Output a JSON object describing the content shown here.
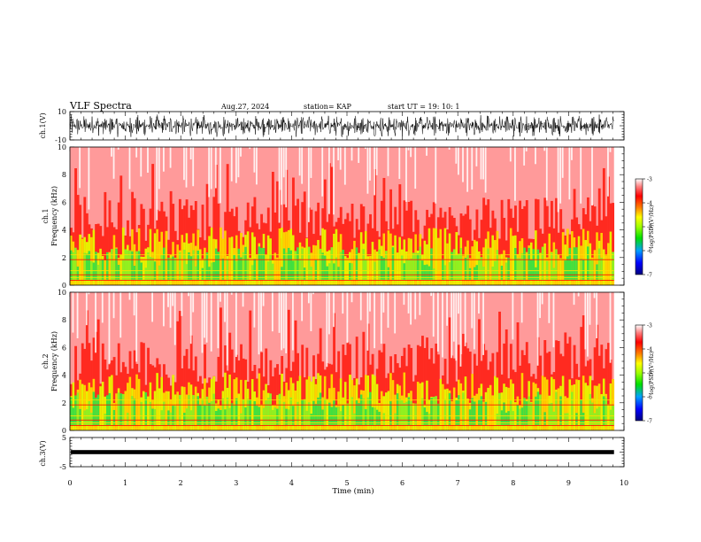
{
  "header": {
    "title": "VLF Spectra",
    "date": "Aug.27, 2024",
    "station": "station= KAP",
    "start": "start  UT =    19: 10: 1"
  },
  "chart_data": [
    {
      "type": "line",
      "name_label": "ch.1(V)",
      "ylabel": "ch.1(V)",
      "ylim": [
        -10,
        10
      ],
      "yticks": [
        "10",
        "-10"
      ],
      "xlim": [
        0,
        10
      ],
      "description_values": {
        "typical_min": -8,
        "typical_max": 8
      }
    },
    {
      "type": "heatmap",
      "ylabel_line1": "ch.1",
      "ylabel_line2": "Frequency  (kHz)",
      "ylim": [
        0,
        10
      ],
      "yticks": [
        "0",
        "2",
        "4",
        "6",
        "8",
        "10"
      ],
      "xlim": [
        0,
        10
      ],
      "colorbar": {
        "label": "log(PSD)(V²/Hz)",
        "range": [
          -7,
          -3
        ],
        "ticks": [
          "-3",
          "-4",
          "-5",
          "-6",
          "-7"
        ],
        "colors": [
          "#000080",
          "#0000ff",
          "#00a0ff",
          "#00e000",
          "#a0ff00",
          "#ffff00",
          "#ff8000",
          "#ff0000",
          "#ff8080",
          "#ffffff"
        ]
      }
    },
    {
      "type": "heatmap",
      "ylabel_line1": "ch.2",
      "ylabel_line2": "Frequency  (kHz)",
      "ylim": [
        0,
        10
      ],
      "yticks": [
        "0",
        "2",
        "4",
        "6",
        "8",
        "10"
      ],
      "xlim": [
        0,
        10
      ],
      "colorbar": {
        "label": "log(PSD)(V²/Hz)",
        "range": [
          -7,
          -3
        ],
        "ticks": [
          "-3",
          "-4",
          "-5",
          "-6",
          "-7"
        ],
        "colors": [
          "#000080",
          "#0000ff",
          "#00a0ff",
          "#00e000",
          "#a0ff00",
          "#ffff00",
          "#ff8000",
          "#ff0000",
          "#ff8080",
          "#ffffff"
        ]
      }
    },
    {
      "type": "line",
      "ylabel": "ch.3(V)",
      "ylim": [
        -5,
        5
      ],
      "yticks": [
        "5",
        "-5"
      ],
      "xlim": [
        0,
        10
      ],
      "description_values": {
        "typical_min": -0.5,
        "typical_max": 0.5
      }
    }
  ],
  "xaxis": {
    "label": "Time  (min)",
    "ticks": [
      "0",
      "1",
      "2",
      "3",
      "4",
      "5",
      "6",
      "7",
      "8",
      "9",
      "10"
    ]
  }
}
